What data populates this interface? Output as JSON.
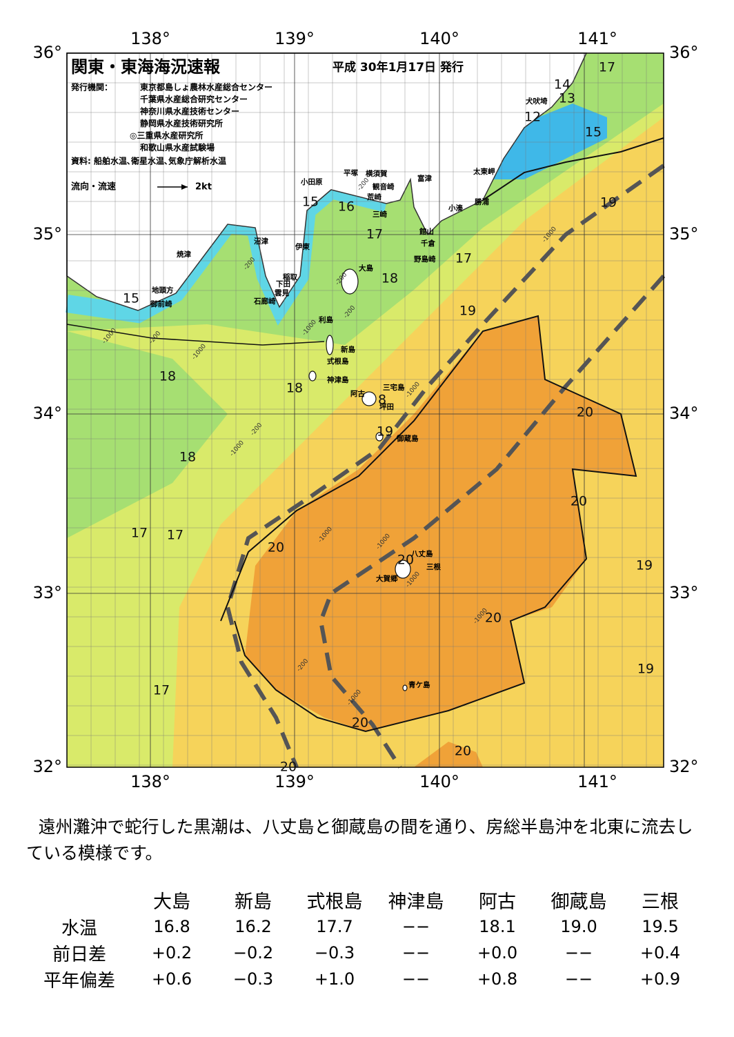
{
  "header": {
    "title": "関東・東海海況速報",
    "date": "平成 30年1月17日 発行",
    "agency_label": "発行機関：",
    "agencies": [
      "東京都島しょ農林水産総合センター",
      "千葉県水産総合研究センター",
      "神奈川県水産技術センター",
      "静岡県水産技術研究所",
      "◎三重県水産研究所",
      "和歌山県水産試験場"
    ],
    "sources": "資料: 船舶水温､衛星水温､気象庁解析水温",
    "legend": "流向・流速",
    "legend_scale": "2kt"
  },
  "map": {
    "lon_labels": [
      "138°",
      "139°",
      "140°",
      "141°"
    ],
    "lat_labels": [
      "36°",
      "35°",
      "34°",
      "33°",
      "32°"
    ],
    "contour_labels": [
      17,
      14,
      13,
      12,
      15,
      19,
      15,
      16,
      17,
      17,
      18,
      19,
      15,
      18,
      18,
      8,
      19,
      20,
      18,
      17,
      17,
      20,
      20,
      20,
      19,
      20,
      19,
      17,
      20,
      20,
      20
    ],
    "place_names": [
      "犬吠埼",
      "太東岬",
      "勝浦",
      "小湊",
      "富津",
      "横須賀",
      "観音崎",
      "平塚",
      "小田原",
      "荒崎",
      "三崎",
      "館山",
      "千倉",
      "野島崎",
      "沼津",
      "伊東",
      "焼津",
      "稲取",
      "下田",
      "雲見",
      "石廊崎",
      "地頭方",
      "御前崎",
      "大島",
      "利島",
      "新島",
      "式根島",
      "神津島",
      "三宅島",
      "阿古",
      "坪田",
      "御蔵島",
      "八丈島",
      "三根",
      "大賀郷",
      "青ケ島"
    ],
    "depth_labels": [
      "-200",
      "-1000",
      "-200",
      "-200",
      "-1000",
      "-1000",
      "-200",
      "-200",
      "-1000",
      "-200",
      "-1000",
      "-1000",
      "-1000",
      "-1000",
      "-200",
      "-1000",
      "-1000",
      "-1000"
    ]
  },
  "description": "遠州灘沖で蛇行した黒潮は、八丈島と御蔵島の間を通り、房総半島沖を北東に流去している模様です。",
  "table": {
    "columns": [
      "大島",
      "新島",
      "式根島",
      "神津島",
      "阿古",
      "御蔵島",
      "三根"
    ],
    "rows": [
      {
        "label": "水温",
        "values": [
          "16.8",
          "16.2",
          "17.7",
          "−−",
          "18.1",
          "19.0",
          "19.5"
        ]
      },
      {
        "label": "前日差",
        "values": [
          "+0.2",
          "−0.2",
          "−0.3",
          "−−",
          "+0.0",
          "−−",
          "+0.4"
        ]
      },
      {
        "label": "平年偏差",
        "values": [
          "+0.6",
          "−0.3",
          "+1.0",
          "−−",
          "+0.8",
          "−−",
          "+0.9"
        ]
      }
    ]
  }
}
